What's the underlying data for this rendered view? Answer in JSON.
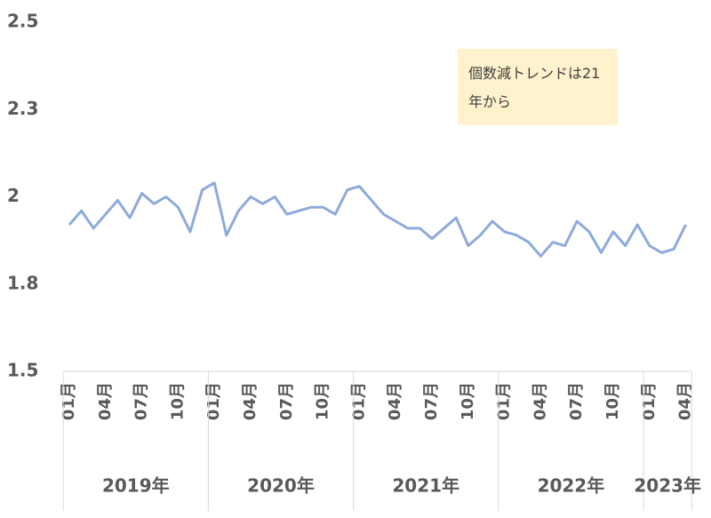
{
  "chart_data": {
    "type": "line",
    "annotation": "個数減トレンドは21年から",
    "categories": [
      "01月",
      null,
      null,
      "04月",
      null,
      null,
      "07月",
      null,
      null,
      "10月",
      null,
      null,
      "01月",
      null,
      null,
      "04月",
      null,
      null,
      "07月",
      null,
      null,
      "10月",
      null,
      null,
      "01月",
      null,
      null,
      "04月",
      null,
      null,
      "07月",
      null,
      null,
      "10月",
      null,
      null,
      "01月",
      null,
      null,
      "04月",
      null,
      null,
      "07月",
      null,
      null,
      "10月",
      null,
      null,
      "01月",
      null,
      null,
      "04月"
    ],
    "groups": [
      "2019年",
      null,
      null,
      null,
      null,
      null,
      null,
      null,
      null,
      null,
      null,
      null,
      "2020年",
      null,
      null,
      null,
      null,
      null,
      null,
      null,
      null,
      null,
      null,
      null,
      "2021年",
      null,
      null,
      null,
      null,
      null,
      null,
      null,
      null,
      null,
      null,
      null,
      "2022年",
      null,
      null,
      null,
      null,
      null,
      null,
      null,
      null,
      null,
      null,
      null,
      "2023年",
      null,
      null,
      null
    ],
    "series": [
      {
        "color": "#8eaadb",
        "values": [
          1.92,
          1.96,
          1.91,
          1.95,
          1.99,
          1.94,
          2.01,
          1.98,
          2.0,
          1.97,
          1.9,
          2.02,
          2.04,
          1.89,
          1.96,
          2.0,
          1.98,
          2.0,
          1.95,
          1.96,
          1.97,
          1.97,
          1.95,
          2.02,
          2.03,
          1.99,
          1.95,
          1.93,
          1.91,
          1.91,
          1.88,
          1.91,
          1.94,
          1.86,
          1.89,
          1.93,
          1.9,
          1.89,
          1.87,
          1.83,
          1.87,
          1.86,
          1.93,
          1.9,
          1.84,
          1.9,
          1.86,
          1.92,
          1.86,
          1.84,
          1.85,
          1.92
        ]
      }
    ],
    "ylim": [
      1.5,
      2.5
    ],
    "yticks": [
      1.5,
      {
        "value": 1.75,
        "label": "1.8"
      },
      2.0,
      {
        "value": 2.25,
        "label": "2.3"
      },
      2.5
    ]
  }
}
